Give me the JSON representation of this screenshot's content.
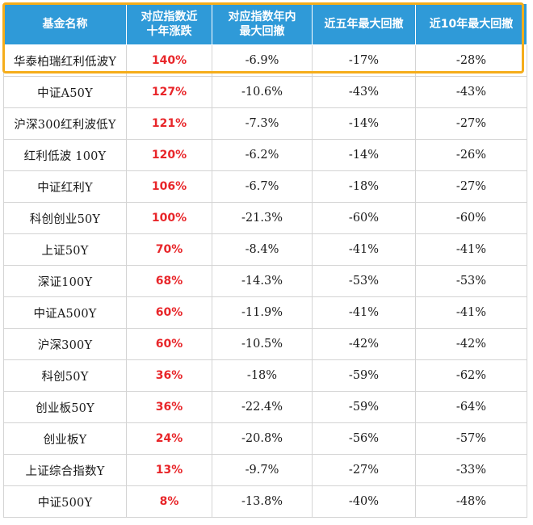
{
  "table": {
    "headers": [
      "基金名称",
      "对应指数近\n十年涨跌",
      "对应指数年内\n最大回撤",
      "近五年最大回撤",
      "近10年最大回撤"
    ],
    "rows": [
      {
        "name": "华泰柏瑞红利低波Y",
        "gain": "140%",
        "ytd_drawdown": "-6.9%",
        "dd5": "-17%",
        "dd10": "-28%"
      },
      {
        "name": "中证A50Y",
        "gain": "127%",
        "ytd_drawdown": "-10.6%",
        "dd5": "-43%",
        "dd10": "-43%"
      },
      {
        "name": "沪深300红利波低Y",
        "gain": "121%",
        "ytd_drawdown": "-7.3%",
        "dd5": "-14%",
        "dd10": "-27%"
      },
      {
        "name": "红利低波 100Y",
        "gain": "120%",
        "ytd_drawdown": "-6.2%",
        "dd5": "-14%",
        "dd10": "-26%"
      },
      {
        "name": "中证红利Y",
        "gain": "106%",
        "ytd_drawdown": "-6.7%",
        "dd5": "-18%",
        "dd10": "-27%"
      },
      {
        "name": "科创创业50Y",
        "gain": "100%",
        "ytd_drawdown": "-21.3%",
        "dd5": "-60%",
        "dd10": "-60%"
      },
      {
        "name": "上证50Y",
        "gain": "70%",
        "ytd_drawdown": "-8.4%",
        "dd5": "-41%",
        "dd10": "-41%"
      },
      {
        "name": "深证100Y",
        "gain": "68%",
        "ytd_drawdown": "-14.3%",
        "dd5": "-53%",
        "dd10": "-53%"
      },
      {
        "name": "中证A500Y",
        "gain": "60%",
        "ytd_drawdown": "-11.9%",
        "dd5": "-41%",
        "dd10": "-41%"
      },
      {
        "name": "沪深300Y",
        "gain": "60%",
        "ytd_drawdown": "-10.5%",
        "dd5": "-42%",
        "dd10": "-42%"
      },
      {
        "name": "科创50Y",
        "gain": "36%",
        "ytd_drawdown": "-18%",
        "dd5": "-59%",
        "dd10": "-62%"
      },
      {
        "name": "创业板50Y",
        "gain": "36%",
        "ytd_drawdown": "-22.4%",
        "dd5": "-59%",
        "dd10": "-64%"
      },
      {
        "name": "创业板Y",
        "gain": "24%",
        "ytd_drawdown": "-20.8%",
        "dd5": "-56%",
        "dd10": "-57%"
      },
      {
        "name": "上证综合指数Y",
        "gain": "13%",
        "ytd_drawdown": "-9.7%",
        "dd5": "-27%",
        "dd10": "-33%"
      },
      {
        "name": "中证500Y",
        "gain": "8%",
        "ytd_drawdown": "-13.8%",
        "dd5": "-40%",
        "dd10": "-48%"
      }
    ],
    "highlighted_row": 0
  },
  "colors": {
    "header_bg": "#2f9ad8",
    "header_text": "#ffffff",
    "gain_text": "#e8262a",
    "highlight_border": "#f5ad1b",
    "grid": "#d4d4d4"
  }
}
